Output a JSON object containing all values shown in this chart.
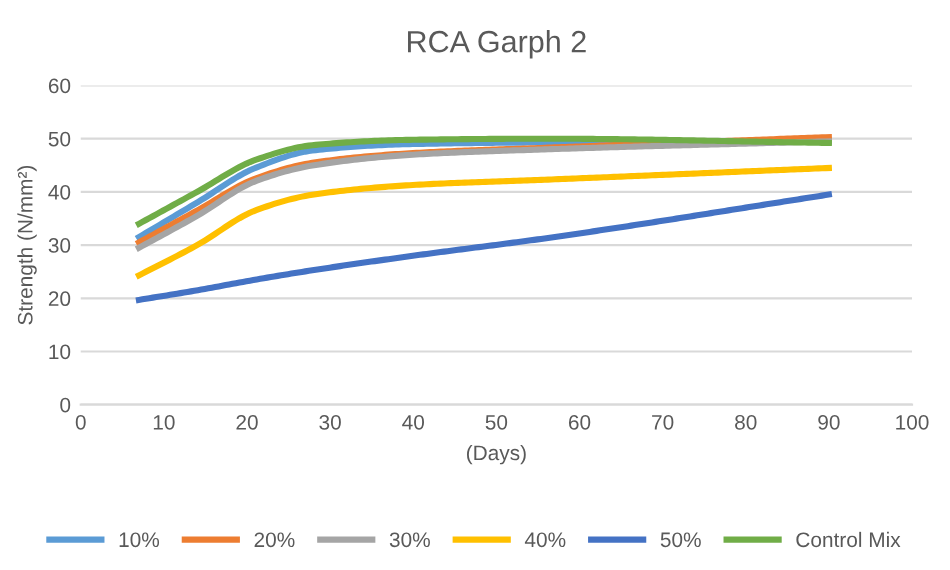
{
  "chart_data": {
    "type": "line",
    "title": "RCA Garph 2",
    "xlabel": "(Days)",
    "ylabel": "Strength (N/mm²)",
    "x": [
      7,
      14,
      21,
      28,
      40,
      56,
      90
    ],
    "series": [
      {
        "name": "10%",
        "color": "#5b9bd5",
        "values": [
          31.5,
          38,
          44.5,
          47.8,
          49,
          49.3,
          49.5
        ]
      },
      {
        "name": "20%",
        "color": "#ed7d31",
        "values": [
          30.5,
          36.5,
          42.5,
          45.5,
          47.3,
          48.3,
          50.3
        ]
      },
      {
        "name": "30%",
        "color": "#a5a5a5",
        "values": [
          29.5,
          35.5,
          42,
          45,
          47,
          48,
          49.5
        ]
      },
      {
        "name": "40%",
        "color": "#ffc000",
        "values": [
          24.3,
          30,
          36.5,
          39.5,
          41.3,
          42.3,
          44.5
        ]
      },
      {
        "name": "50%",
        "color": "#4472c4",
        "values": [
          19.7,
          21.5,
          23.5,
          25.3,
          28,
          31.3,
          39.5
        ]
      },
      {
        "name": "Control Mix",
        "color": "#70ad47",
        "values": [
          34,
          40,
          46,
          48.8,
          49.8,
          50,
          49.2
        ]
      }
    ],
    "xlim": [
      0,
      100
    ],
    "xticks": [
      0,
      10,
      20,
      30,
      40,
      50,
      60,
      70,
      80,
      90,
      100
    ],
    "ylim": [
      0,
      60
    ],
    "yticks": [
      0,
      10,
      20,
      30,
      40,
      50,
      60
    ],
    "grid": "y",
    "legend": "bottom",
    "marker": "none",
    "line_style": "solid"
  }
}
